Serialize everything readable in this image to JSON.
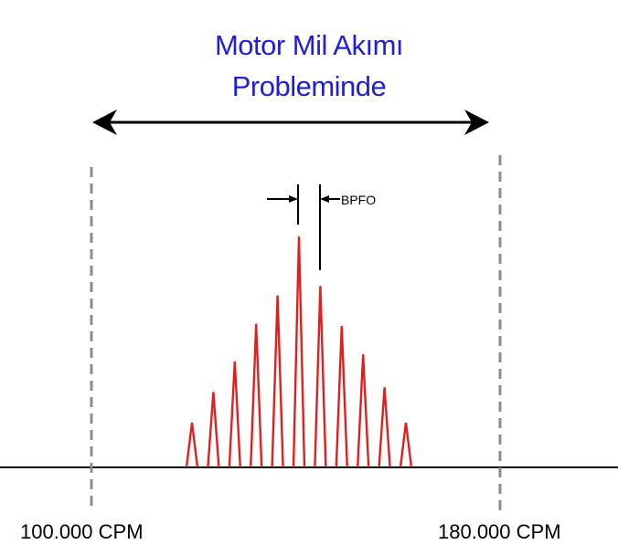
{
  "title": {
    "line1": "Motor Mil Akımı",
    "line2": "Probleminde"
  },
  "labels": {
    "left": "100.000 CPM",
    "right": "180.000 CPM",
    "spacing": "BPFO"
  },
  "colors": {
    "title": "#1f1fd6",
    "peaks": "#e02020",
    "lines": "#000000",
    "markers": "#8c8c8c"
  },
  "spectrum": {
    "peak_count": 11,
    "relative_amplitudes": [
      0.19,
      0.32,
      0.45,
      0.61,
      0.73,
      0.98,
      0.77,
      0.6,
      0.48,
      0.34,
      0.19
    ]
  }
}
